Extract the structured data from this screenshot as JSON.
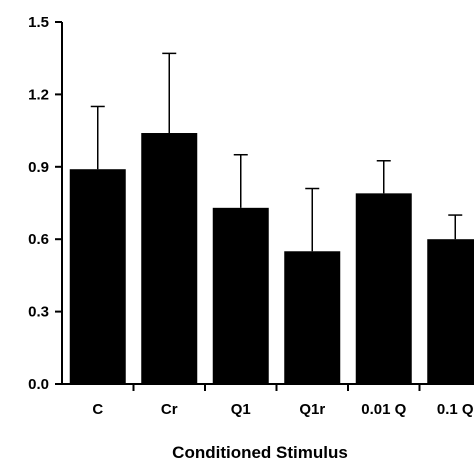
{
  "chart_data": {
    "type": "bar",
    "title": "",
    "xlabel": "Conditioned Stimulus",
    "ylabel": "",
    "ylim": [
      0,
      1.5
    ],
    "yticks": [
      0.0,
      0.3,
      0.6,
      0.9,
      1.2,
      1.5
    ],
    "ytick_labels": [
      "0.0",
      "0.3",
      "0.6",
      "0.9",
      "1.2",
      "1.5"
    ],
    "categories": [
      "C",
      "Cr",
      "Q1",
      "Q1r",
      "0.01 Q",
      "0.1 Q"
    ],
    "values": [
      0.89,
      1.04,
      0.73,
      0.55,
      0.79,
      0.6
    ],
    "error_upper": [
      1.15,
      1.37,
      0.95,
      0.81,
      0.925,
      0.7
    ],
    "bar_color": "#000000",
    "grid": false,
    "legend": "none"
  }
}
